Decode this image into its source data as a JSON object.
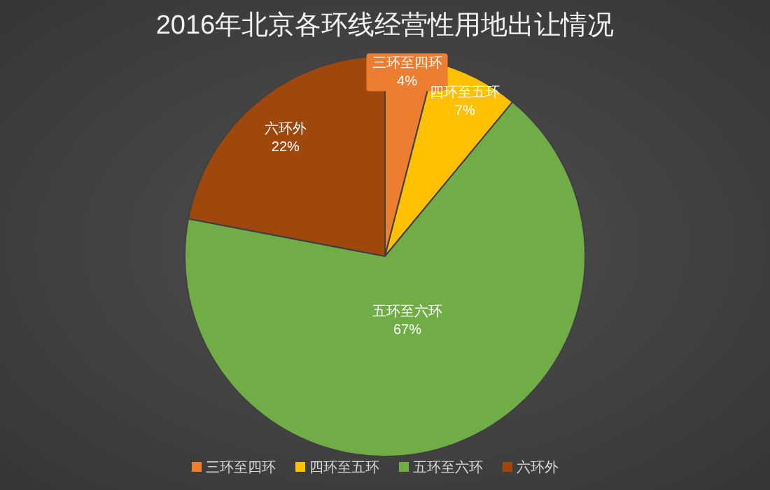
{
  "chart_data": {
    "type": "pie",
    "title": "2016年北京各环线经营性用地出让情况",
    "categories": [
      "三环至四环",
      "四环至五环",
      "五环至六环",
      "六环外"
    ],
    "values": [
      4,
      7,
      67,
      22
    ],
    "colors": [
      "#ed7d31",
      "#ffc000",
      "#70ad47",
      "#9e480e"
    ],
    "value_labels": [
      "4%",
      "7%",
      "67%",
      "22%"
    ],
    "legend": "bottom"
  }
}
